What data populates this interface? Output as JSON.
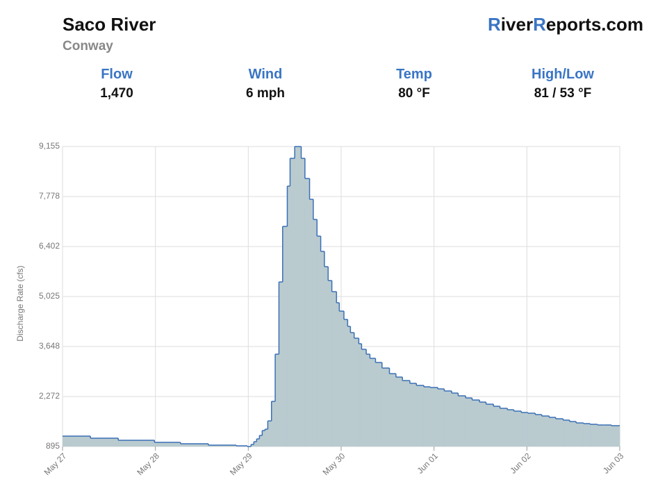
{
  "header": {
    "title": "Saco River",
    "subtitle": "Conway",
    "brand": [
      "R",
      "iver",
      "R",
      "eports.com"
    ]
  },
  "stats": [
    {
      "label": "Flow",
      "value": "1,470"
    },
    {
      "label": "Wind",
      "value": "6 mph"
    },
    {
      "label": "Temp",
      "value": "80 °F"
    },
    {
      "label": "High/Low",
      "value": "81 / 53 °F"
    }
  ],
  "chart_data": {
    "type": "step-area",
    "y_label": "Discharge Rate (cfs)",
    "color": "#3a6fb5",
    "fill": "#b9cbcf",
    "grid": true,
    "xlim": [
      0,
      6
    ],
    "xticks": [
      {
        "value": 0,
        "label": "May 27"
      },
      {
        "value": 1,
        "label": "May 28"
      },
      {
        "value": 2,
        "label": "May 29"
      },
      {
        "value": 3,
        "label": "May 30"
      },
      {
        "value": 4,
        "label": "Jun 01"
      },
      {
        "value": 5,
        "label": "Jun 02"
      },
      {
        "value": 6,
        "label": "Jun 03"
      }
    ],
    "ylim": [
      895,
      9155
    ],
    "yticks": [
      {
        "value": 895,
        "label": "895"
      },
      {
        "value": 2272,
        "label": "2,272"
      },
      {
        "value": 3648,
        "label": "3,648"
      },
      {
        "value": 5025,
        "label": "5,025"
      },
      {
        "value": 6402,
        "label": "6,402"
      },
      {
        "value": 7778,
        "label": "7,778"
      },
      {
        "value": 9155,
        "label": "9,155"
      }
    ],
    "x": [
      0,
      0.3,
      0.6,
      0.99,
      1.27,
      1.57,
      1.87,
      1.99,
      2.03,
      2.06,
      2.09,
      2.12,
      2.15,
      2.18,
      2.21,
      2.25,
      2.29,
      2.33,
      2.37,
      2.42,
      2.45,
      2.5,
      2.53,
      2.57,
      2.61,
      2.66,
      2.7,
      2.74,
      2.78,
      2.82,
      2.86,
      2.9,
      2.95,
      2.98,
      3.03,
      3.07,
      3.1,
      3.14,
      3.19,
      3.22,
      3.27,
      3.31,
      3.37,
      3.44,
      3.52,
      3.59,
      3.66,
      3.74,
      3.81,
      3.89,
      3.96,
      4.04,
      4.11,
      4.19,
      4.26,
      4.34,
      4.41,
      4.49,
      4.56,
      4.64,
      4.71,
      4.79,
      4.86,
      4.94,
      5.01,
      5.09,
      5.16,
      5.24,
      5.31,
      5.39,
      5.46,
      5.53,
      5.61,
      5.68,
      5.76,
      5.83,
      5.91,
      6
    ],
    "values": [
      1182,
      1124,
      1067,
      1010,
      971,
      933,
      914,
      895,
      952,
      1029,
      1105,
      1200,
      1335,
      1373,
      1600,
      2138,
      3438,
      5426,
      6956,
      8065,
      8830,
      9155,
      9155,
      8830,
      8275,
      7702,
      7147,
      6688,
      6268,
      5847,
      5465,
      5159,
      4853,
      4623,
      4394,
      4203,
      4031,
      3878,
      3725,
      3572,
      3438,
      3323,
      3209,
      3056,
      2902,
      2807,
      2711,
      2635,
      2578,
      2539,
      2520,
      2482,
      2425,
      2367,
      2291,
      2233,
      2176,
      2119,
      2061,
      2004,
      1947,
      1908,
      1870,
      1832,
      1813,
      1775,
      1736,
      1698,
      1660,
      1622,
      1583,
      1545,
      1526,
      1507,
      1488,
      1488,
      1469,
      1469
    ]
  }
}
